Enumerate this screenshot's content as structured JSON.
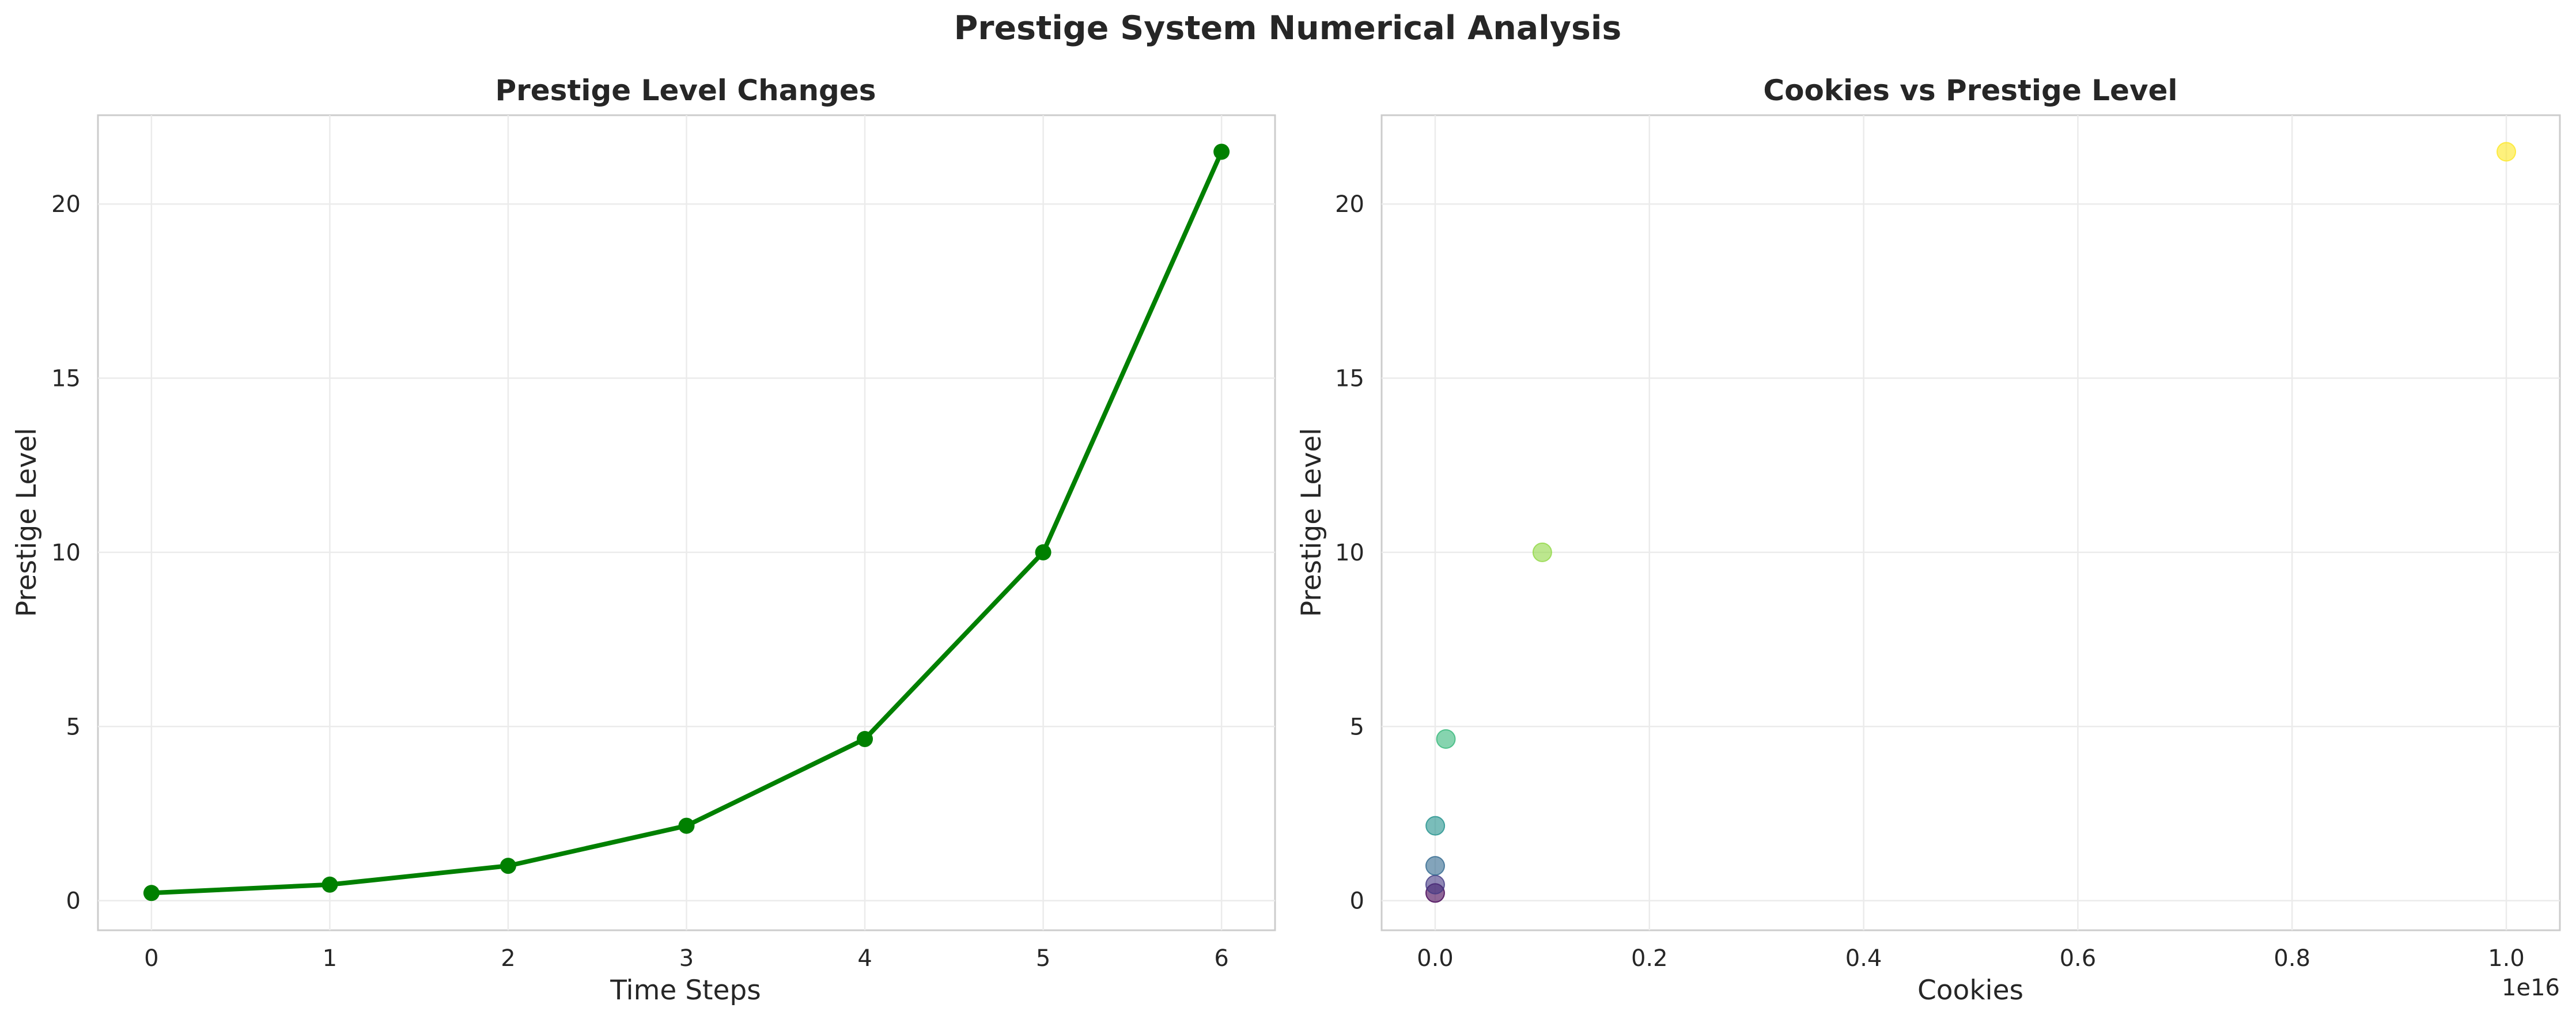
{
  "figure": {
    "title": "Prestige System Numerical Analysis"
  },
  "colors": {
    "line": "#008000",
    "scatter_colormap": "viridis",
    "grid": "#ebebeb",
    "frame": "#cccccc"
  },
  "chart_data": [
    {
      "type": "line",
      "title": "Prestige Level Changes",
      "xlabel": "Time Steps",
      "ylabel": "Prestige Level",
      "x": [
        0,
        1,
        2,
        3,
        4,
        5,
        6
      ],
      "y": [
        0.22,
        0.46,
        1.0,
        2.15,
        4.64,
        10.0,
        21.5
      ],
      "xlim": [
        -0.3,
        6.3
      ],
      "ylim": [
        -0.85,
        22.55
      ],
      "xticks": [
        0,
        1,
        2,
        3,
        4,
        5,
        6
      ],
      "yticks": [
        0,
        5,
        10,
        15,
        20
      ],
      "x_offset_label": "",
      "grid": true,
      "marker": "circle",
      "color": "#008000"
    },
    {
      "type": "scatter",
      "title": "Cookies vs Prestige Level",
      "xlabel": "Cookies",
      "ylabel": "Prestige Level",
      "x": [
        0,
        0,
        0,
        0,
        0,
        0,
        0
      ],
      "x_exact": [
        1000000000.0,
        10000000000.0,
        100000000000.0,
        1000000000000.0,
        100000000000000.0,
        1000000000000000.0,
        1e+16
      ],
      "y": [
        0.22,
        0.46,
        1.0,
        2.15,
        4.64,
        10.0,
        21.5
      ],
      "point_colors": [
        "#440154",
        "#443983",
        "#31688e",
        "#21918c",
        "#35b779",
        "#90d743",
        "#fde725"
      ],
      "xlim": [
        -500000000000000.0,
        1.05e+16
      ],
      "ylim": [
        -0.85,
        22.55
      ],
      "xticks": [
        0,
        2000000000000000.0,
        4000000000000000.0,
        6000000000000000.0,
        8000000000000000.0,
        1e+16
      ],
      "xticklabels": [
        "0.0",
        "0.2",
        "0.4",
        "0.6",
        "0.8",
        "1.0"
      ],
      "yticks": [
        0,
        5,
        10,
        15,
        20
      ],
      "x_offset_label": "1e16",
      "grid": true,
      "alpha": 0.6
    }
  ]
}
